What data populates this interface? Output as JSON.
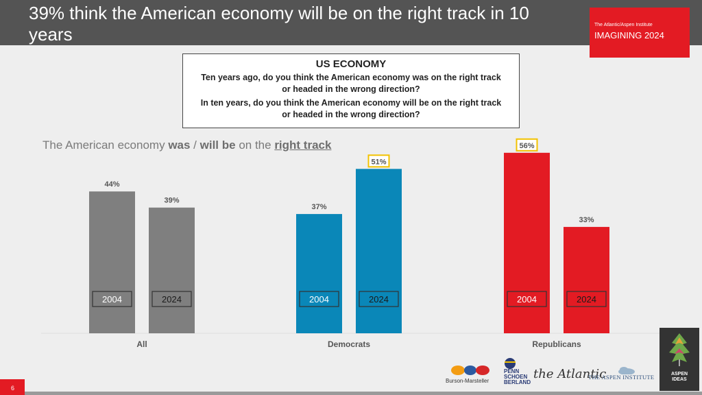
{
  "header": {
    "title": "39% think the American economy will be on the right track in 10 years",
    "brand_small": "The Atlantic/Aspen Institute",
    "brand_title": "IMAGINING 2024"
  },
  "question_box": {
    "title": "US ECONOMY",
    "q1": "Ten years ago, do you think the American economy was on the right track or headed in the wrong direction?",
    "q2": "In ten years, do you think the American economy will be on the right track or headed in the wrong direction?"
  },
  "subtitle": {
    "part1": "The American economy ",
    "was": "was",
    "sep": " / ",
    "will_be": "will be",
    "on_the": " on the ",
    "right_track": "right track"
  },
  "chart_data": {
    "type": "bar",
    "title": "The American economy was / will be on the right track",
    "categories": [
      "All",
      "Democrats",
      "Republicans"
    ],
    "series": [
      {
        "name": "2004",
        "values": [
          44,
          37,
          56
        ]
      },
      {
        "name": "2024",
        "values": [
          39,
          51,
          33
        ]
      }
    ],
    "value_labels": [
      [
        "44%",
        "39%"
      ],
      [
        "37%",
        "51%"
      ],
      [
        "56%",
        "33%"
      ]
    ],
    "highlighted": [
      [
        false,
        false
      ],
      [
        false,
        true
      ],
      [
        true,
        false
      ]
    ],
    "category_colors": [
      "#7f7f7f",
      "#0a87b8",
      "#e31b23"
    ],
    "highlight_color": "#f2c200",
    "ylim": [
      0,
      60
    ],
    "xlabel": "",
    "ylabel": ""
  },
  "footer": {
    "page_number": "6",
    "logos": {
      "burson": "Burson-Marsteller",
      "psb": [
        "PENN",
        "SCHOEN",
        "BERLAND"
      ],
      "atlantic": "the Atlantic",
      "aspen": "THE ASPEN INSTITUTE",
      "ideas": [
        "ASPEN",
        "IDEAS"
      ]
    }
  }
}
